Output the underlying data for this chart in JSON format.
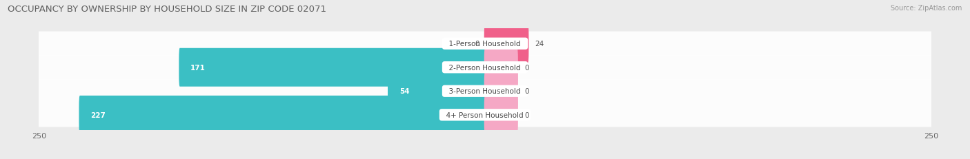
{
  "title": "OCCUPANCY BY OWNERSHIP BY HOUSEHOLD SIZE IN ZIP CODE 02071",
  "source": "Source: ZipAtlas.com",
  "categories": [
    "1-Person Household",
    "2-Person Household",
    "3-Person Household",
    "4+ Person Household"
  ],
  "owner_values": [
    0,
    171,
    54,
    227
  ],
  "renter_values": [
    24,
    0,
    0,
    0
  ],
  "xlim": 250,
  "owner_color": "#3bbfc4",
  "renter_color_bright": "#f0608a",
  "renter_color_light": "#f5a8c5",
  "row_bg_color": "#f5f5f5",
  "background_color": "#ebebeb",
  "bar_height": 0.62,
  "title_fontsize": 9.5,
  "label_fontsize": 7.5,
  "value_fontsize": 7.5,
  "tick_fontsize": 8,
  "legend_fontsize": 8,
  "source_fontsize": 7
}
